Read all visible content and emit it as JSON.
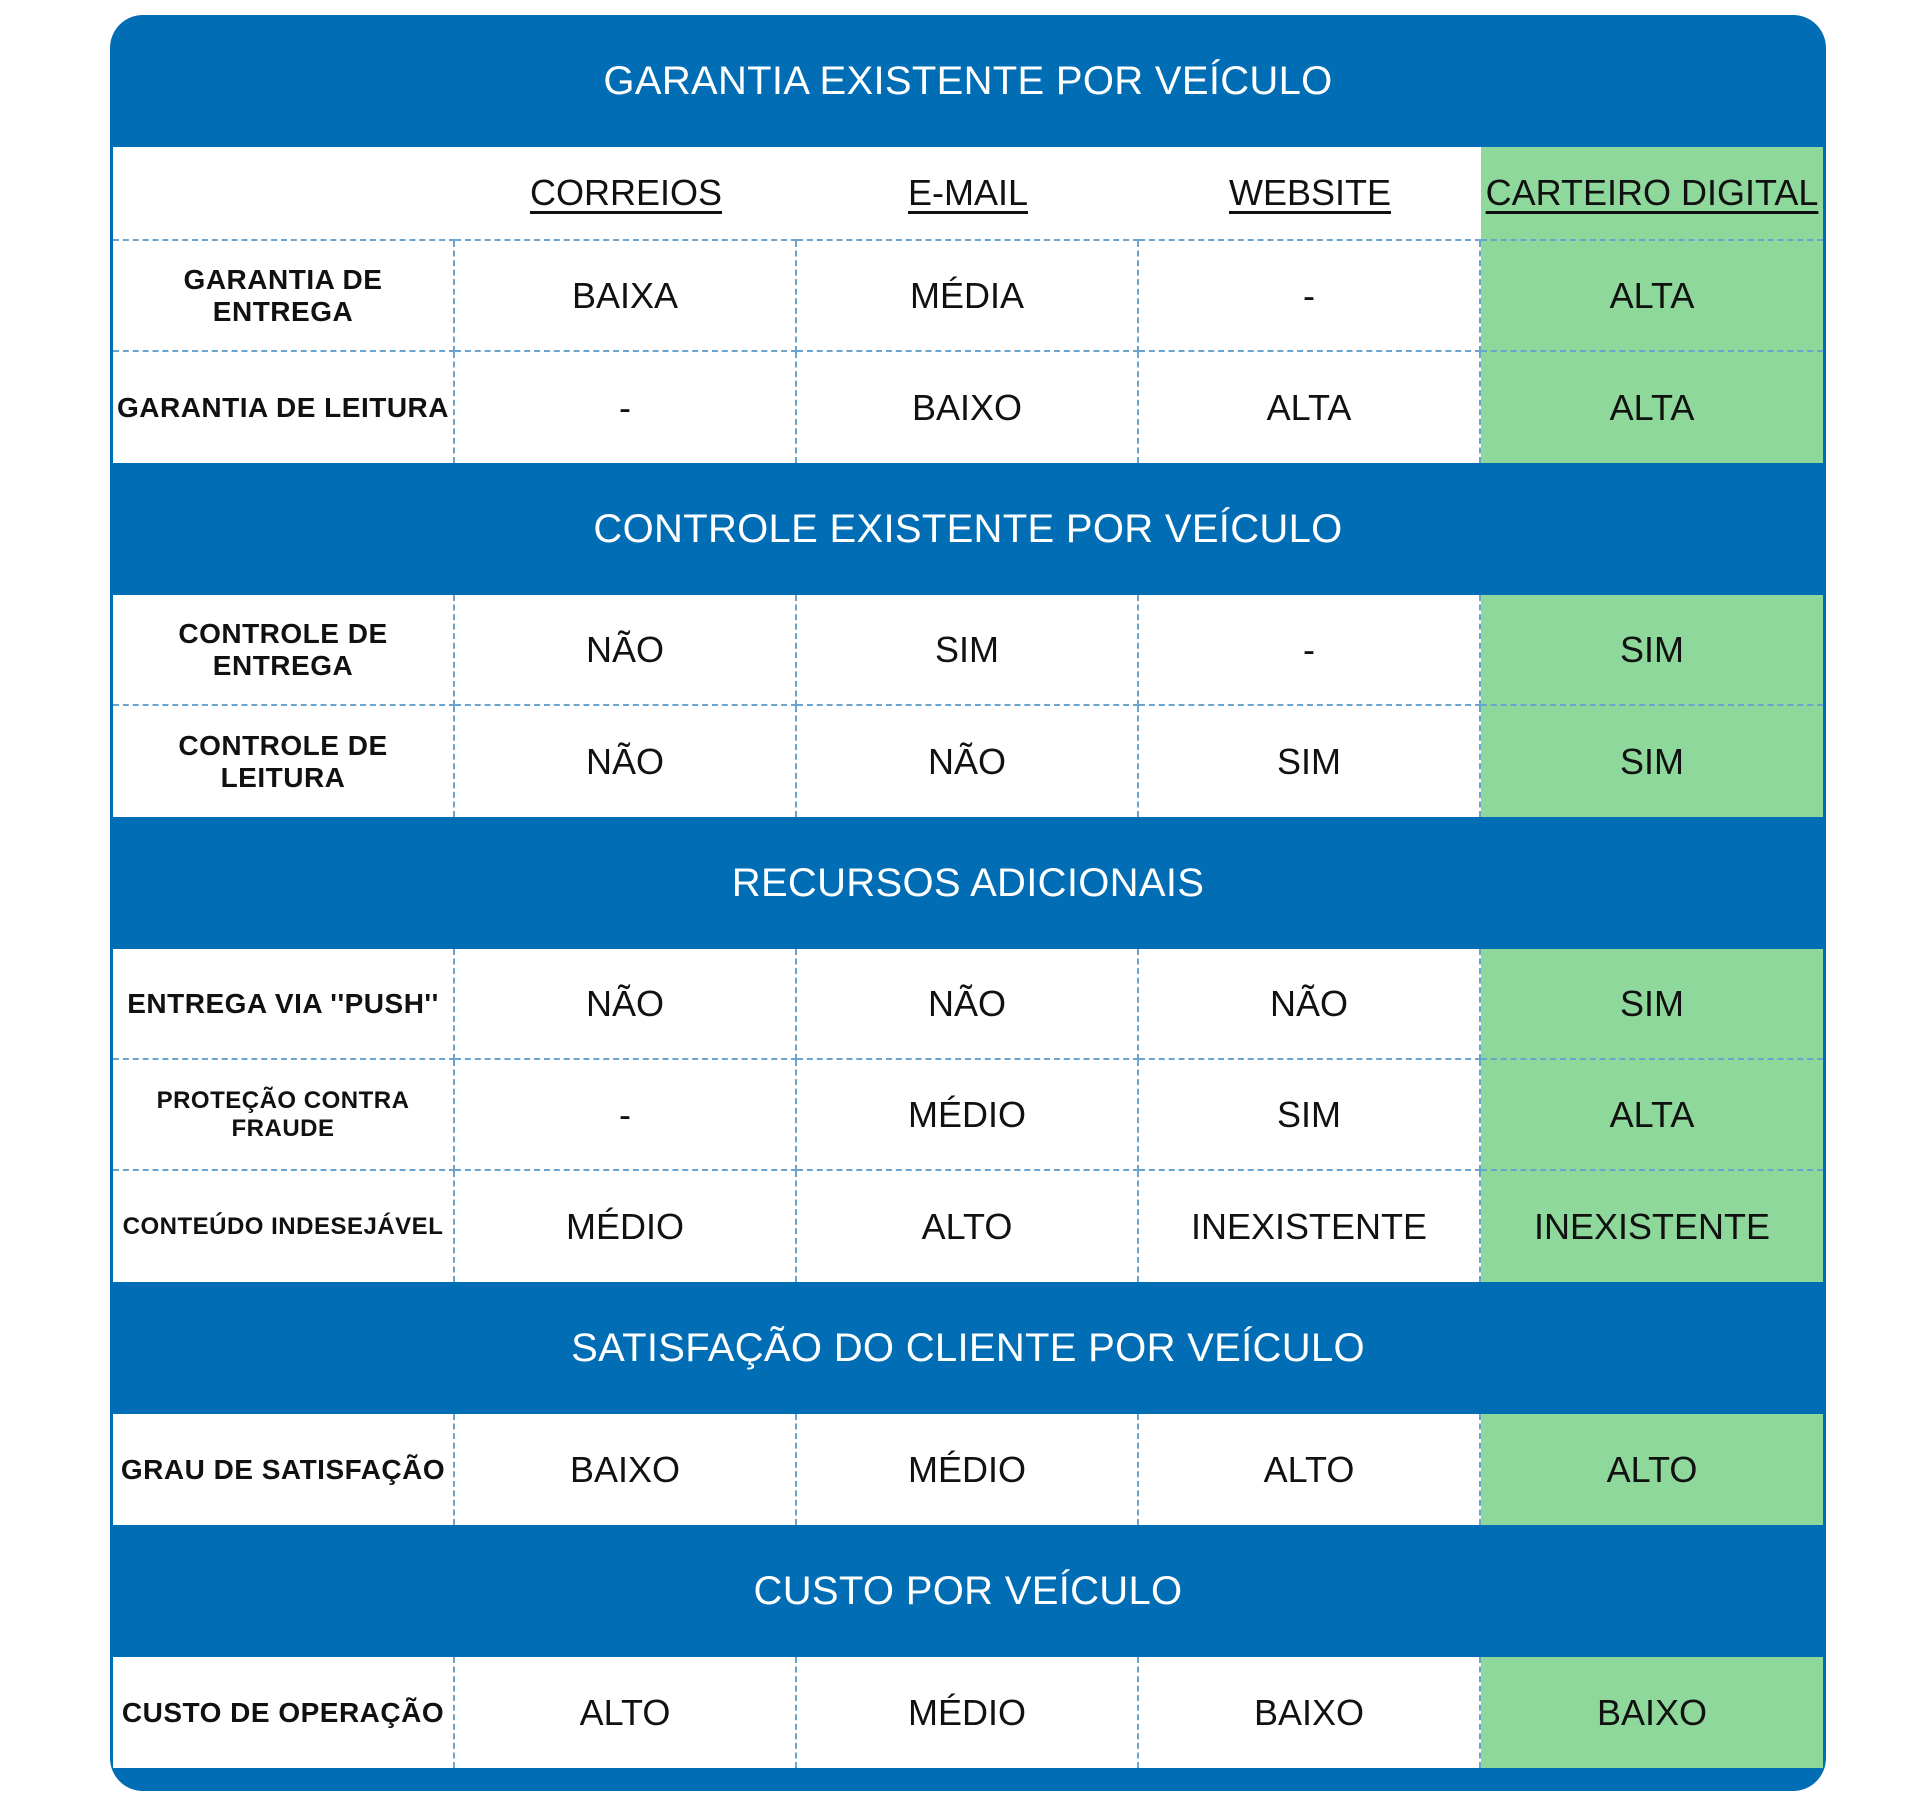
{
  "columns": [
    "CORREIOS",
    "E-MAIL",
    "WEBSITE",
    "CARTEIRO DIGITAL"
  ],
  "highlight_color": "#8dd89a",
  "header_color": "#006db5",
  "sections": [
    {
      "title": "GARANTIA EXISTENTE POR VEÍCULO",
      "rows": [
        {
          "label": "GARANTIA DE ENTREGA",
          "values": [
            "BAIXA",
            "MÉDIA",
            "-",
            "ALTA"
          ]
        },
        {
          "label": "GARANTIA DE LEITURA",
          "values": [
            "-",
            "BAIXO",
            "ALTA",
            "ALTA"
          ]
        }
      ]
    },
    {
      "title": "CONTROLE EXISTENTE POR VEÍCULO",
      "rows": [
        {
          "label": "CONTROLE DE ENTREGA",
          "values": [
            "NÃO",
            "SIM",
            "-",
            "SIM"
          ]
        },
        {
          "label": "CONTROLE DE LEITURA",
          "values": [
            "NÃO",
            "NÃO",
            "SIM",
            "SIM"
          ]
        }
      ]
    },
    {
      "title": "RECURSOS ADICIONAIS",
      "rows": [
        {
          "label": "ENTREGA VIA  ''PUSH''",
          "values": [
            "NÃO",
            "NÃO",
            "NÃO",
            "SIM"
          ]
        },
        {
          "label": "PROTEÇÃO CONTRA FRAUDE",
          "values": [
            "-",
            "MÉDIO",
            "SIM",
            "ALTA"
          ]
        },
        {
          "label": "CONTEÚDO INDESEJÁVEL",
          "values": [
            "MÉDIO",
            "ALTO",
            "INEXISTENTE",
            "INEXISTENTE"
          ]
        }
      ]
    },
    {
      "title": "SATISFAÇÃO DO CLIENTE POR VEÍCULO",
      "rows": [
        {
          "label": "GRAU DE SATISFAÇÃO",
          "values": [
            "BAIXO",
            "MÉDIO",
            "ALTO",
            "ALTO"
          ]
        }
      ]
    },
    {
      "title": "CUSTO POR VEÍCULO",
      "rows": [
        {
          "label": "CUSTO DE OPERAÇÃO",
          "values": [
            "ALTO",
            "MÉDIO",
            "BAIXO",
            "BAIXO"
          ]
        }
      ]
    }
  ]
}
